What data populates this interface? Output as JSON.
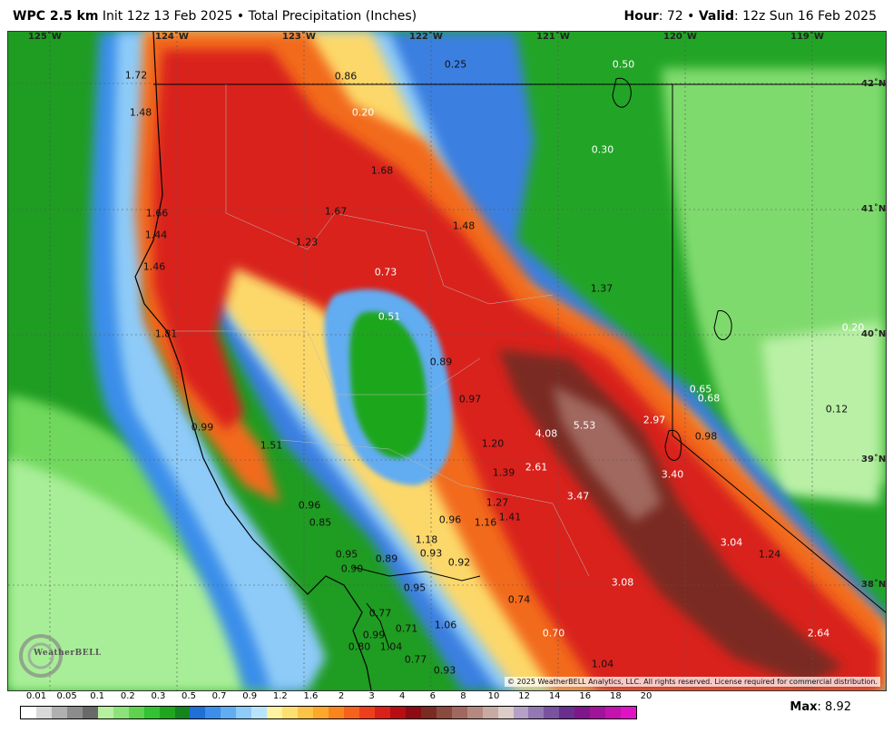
{
  "header": {
    "model": "WPC 2.5 km",
    "init": "Init 12z 13 Feb 2025",
    "bullet": "•",
    "field": "Total Precipitation (Inches)",
    "hour_label": "Hour",
    "hour_value": ": 72",
    "valid_label": "Valid",
    "valid_value": ": 12z Sun 16 Feb 2025"
  },
  "longitudes": [
    "125˚W",
    "124˚W",
    "123˚W",
    "122˚W",
    "121˚W",
    "120˚W",
    "119˚W"
  ],
  "latitudes": [
    "42˚N",
    "41˚N",
    "40˚N",
    "39˚N",
    "38˚N"
  ],
  "values": [
    "1.72",
    "0.86",
    "0.25",
    "0.50",
    "1.48",
    "0.20",
    "0.30",
    "1.68",
    "1.66",
    "1.67",
    "1.44",
    "1.23",
    "1.48",
    "1.46",
    "0.73",
    "1.37",
    "0.51",
    "1.81",
    "0.89",
    "0.97",
    "0.20",
    "0.65",
    "0.68",
    "4.08",
    "5.53",
    "2.97",
    "0.12",
    "0.99",
    "1.51",
    "1.20",
    "0.98",
    "1.39",
    "2.61",
    "3.40",
    "3.47",
    "1.27",
    "0.96",
    "0.85",
    "1.16",
    "1.41",
    "0.96",
    "1.18",
    "0.93",
    "3.04",
    "1.24",
    "0.95",
    "0.89",
    "0.90",
    "0.92",
    "0.95",
    "3.08",
    "0.74",
    "0.77",
    "0.71",
    "1.06",
    "0.99",
    "0.70",
    "2.64",
    "0.80",
    "1.04",
    "0.77",
    "1.04",
    "0.93"
  ],
  "copyright": "© 2025 WeatherBELL Analytics, LLC. All rights reserved. License required for commercial distribution.",
  "logo_text": "WeatherBELL",
  "legend": {
    "labels": [
      "0.01",
      "0.05",
      "0.1",
      "0.2",
      "0.3",
      "0.5",
      "0.7",
      "0.9",
      "1.2",
      "1.6",
      "2",
      "3",
      "4",
      "6",
      "8",
      "10",
      "12",
      "14",
      "16",
      "18",
      "20"
    ],
    "colors": [
      "#ffffff",
      "#d9d9d9",
      "#b0b0b0",
      "#8c8c8c",
      "#696969",
      "#b7f0a0",
      "#8ee27a",
      "#5fd34f",
      "#32c232",
      "#1fa61f",
      "#14841e",
      "#1f6fd6",
      "#3b8eea",
      "#62acf2",
      "#8ecbf8",
      "#b8e4fb",
      "#fdf3a0",
      "#fde072",
      "#fcc447",
      "#fba82b",
      "#f9861c",
      "#f6611b",
      "#ef3e1c",
      "#d9201b",
      "#b70d13",
      "#8f0a12",
      "#7a2b22",
      "#8a4a40",
      "#a0685e",
      "#b5897f",
      "#c9aaa2",
      "#ddccc7",
      "#b5a0c8",
      "#9478b4",
      "#7a53a0",
      "#6a2f8e",
      "#80168c",
      "#a0139a",
      "#c312ad",
      "#e012c6"
    ]
  },
  "max": {
    "label": "Max",
    "value": ": 8.92"
  },
  "colors": {
    "ocean_deep": "#1a9a1a",
    "ocean_light": "#a8ee98"
  }
}
